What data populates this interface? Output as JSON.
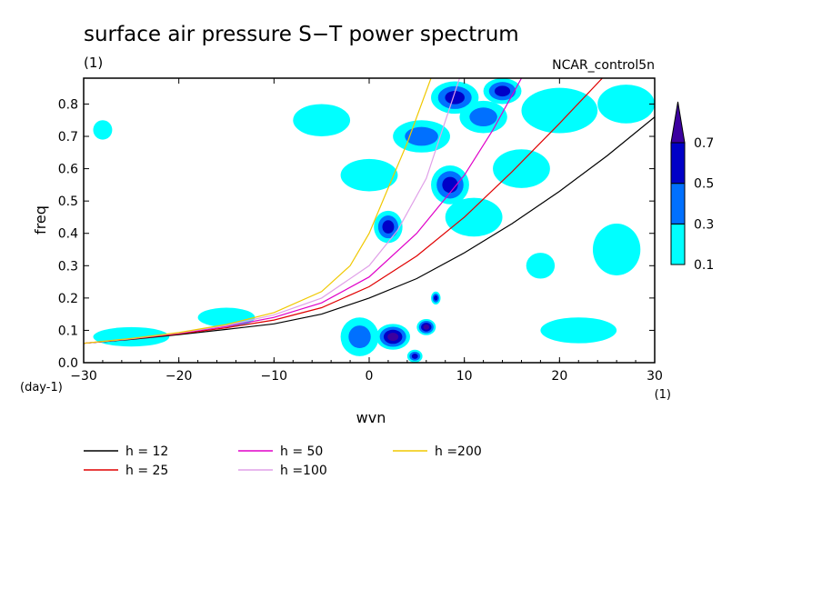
{
  "figure": {
    "title": "surface air pressure S−T power spectrum",
    "title_units": "(1)",
    "dataset": "NCAR_control5n",
    "x_units_below": "(1)",
    "y_units_below": "(day-1)"
  },
  "legend_entries": [
    {
      "label": "h = 12",
      "color": "#000000"
    },
    {
      "label": "h = 25",
      "color": "#e00000"
    },
    {
      "label": "h = 50",
      "color": "#e000c8"
    },
    {
      "label": "h =100",
      "color": "#e0a0e8"
    },
    {
      "label": "h =200",
      "color": "#f0c800"
    }
  ],
  "colorbar": {
    "labels": [
      "0.1",
      "0.3",
      "0.5",
      "0.7"
    ],
    "bands": [
      {
        "from": 0.1,
        "to": 0.3,
        "color": "#00ffff"
      },
      {
        "from": 0.3,
        "to": 0.5,
        "color": "#0070ff"
      },
      {
        "from": 0.5,
        "to": 0.7,
        "color": "#0000c8"
      },
      {
        "from": 0.7,
        "to": null,
        "color": "#3c00a0"
      }
    ]
  },
  "chart_data": {
    "type": "contour",
    "title": "surface air pressure S−T power spectrum",
    "xlabel": "wvn",
    "ylabel": "freq",
    "xlim": [
      -30,
      30
    ],
    "ylim": [
      0.0,
      0.88
    ],
    "x_ticks": [
      -30,
      -20,
      -10,
      0,
      10,
      20,
      30
    ],
    "x_tick_labels": [
      "−30",
      "−20",
      "−10",
      "0",
      "10",
      "20",
      "30"
    ],
    "y_ticks": [
      0.0,
      0.1,
      0.2,
      0.3,
      0.4,
      0.5,
      0.6,
      0.7,
      0.8
    ],
    "y_tick_labels": [
      "0.0",
      "0.1",
      "0.2",
      "0.3",
      "0.4",
      "0.5",
      "0.6",
      "0.7",
      "0.8"
    ],
    "contour_levels": [
      0.1,
      0.3,
      0.5,
      0.7
    ],
    "legend_position": "bottom",
    "dispersion_curves": [
      {
        "name": "h = 12",
        "color": "#000000",
        "x": [
          -30,
          -25,
          -20,
          -15,
          -10,
          -5,
          0,
          5,
          10,
          15,
          20,
          25,
          30
        ],
        "y": [
          0.06,
          0.072,
          0.087,
          0.103,
          0.12,
          0.15,
          0.2,
          0.26,
          0.34,
          0.43,
          0.53,
          0.64,
          0.76
        ]
      },
      {
        "name": "h = 25",
        "color": "#e00000",
        "x": [
          -30,
          -25,
          -20,
          -15,
          -10,
          -5,
          0,
          5,
          10,
          15,
          20,
          24.5
        ],
        "y": [
          0.06,
          0.073,
          0.089,
          0.108,
          0.132,
          0.17,
          0.235,
          0.33,
          0.45,
          0.59,
          0.74,
          0.88
        ]
      },
      {
        "name": "h = 50",
        "color": "#e000c8",
        "x": [
          -30,
          -25,
          -20,
          -15,
          -10,
          -5,
          0,
          5,
          10,
          13,
          16
        ],
        "y": [
          0.06,
          0.074,
          0.091,
          0.112,
          0.14,
          0.185,
          0.265,
          0.4,
          0.58,
          0.72,
          0.88
        ]
      },
      {
        "name": "h =100",
        "color": "#e0a0e8",
        "x": [
          -30,
          -25,
          -20,
          -15,
          -10,
          -5,
          0,
          3,
          6,
          9.5
        ],
        "y": [
          0.06,
          0.074,
          0.092,
          0.115,
          0.148,
          0.2,
          0.3,
          0.41,
          0.57,
          0.88
        ]
      },
      {
        "name": "h =200",
        "color": "#f0c800",
        "x": [
          -30,
          -25,
          -20,
          -15,
          -10,
          -5,
          -2,
          0,
          2,
          4,
          6.5
        ],
        "y": [
          0.06,
          0.075,
          0.093,
          0.118,
          0.155,
          0.22,
          0.3,
          0.4,
          0.54,
          0.68,
          0.88
        ]
      }
    ],
    "contour_regions": [
      {
        "x": 2.5,
        "y": 0.08,
        "rx": 1.8,
        "ry": 0.04,
        "level": 0.7
      },
      {
        "x": 6.0,
        "y": 0.11,
        "rx": 1.0,
        "ry": 0.025,
        "level": 0.7
      },
      {
        "x": 4.8,
        "y": 0.02,
        "rx": 0.8,
        "ry": 0.02,
        "level": 0.5
      },
      {
        "x": 7.0,
        "y": 0.2,
        "rx": 0.5,
        "ry": 0.02,
        "level": 0.5
      },
      {
        "x": -1.0,
        "y": 0.08,
        "rx": 2.0,
        "ry": 0.06,
        "level": 0.3
      },
      {
        "x": 2.0,
        "y": 0.42,
        "rx": 1.5,
        "ry": 0.05,
        "level": 0.5
      },
      {
        "x": 8.5,
        "y": 0.55,
        "rx": 2.0,
        "ry": 0.06,
        "level": 0.5
      },
      {
        "x": 9.0,
        "y": 0.82,
        "rx": 2.5,
        "ry": 0.05,
        "level": 0.5
      },
      {
        "x": 12.0,
        "y": 0.76,
        "rx": 2.5,
        "ry": 0.05,
        "level": 0.3
      },
      {
        "x": 14.0,
        "y": 0.84,
        "rx": 2.0,
        "ry": 0.04,
        "level": 0.5
      },
      {
        "x": 5.5,
        "y": 0.7,
        "rx": 3.0,
        "ry": 0.05,
        "level": 0.3
      },
      {
        "x": 20.0,
        "y": 0.78,
        "rx": 4.0,
        "ry": 0.07,
        "level": 0.1
      },
      {
        "x": 27.0,
        "y": 0.8,
        "rx": 3.0,
        "ry": 0.06,
        "level": 0.1
      },
      {
        "x": 16.0,
        "y": 0.6,
        "rx": 3.0,
        "ry": 0.06,
        "level": 0.1
      },
      {
        "x": -5.0,
        "y": 0.75,
        "rx": 3.0,
        "ry": 0.05,
        "level": 0.1
      },
      {
        "x": -28.0,
        "y": 0.72,
        "rx": 1.0,
        "ry": 0.03,
        "level": 0.1
      },
      {
        "x": -25.0,
        "y": 0.08,
        "rx": 4.0,
        "ry": 0.03,
        "level": 0.1
      },
      {
        "x": -15.0,
        "y": 0.14,
        "rx": 3.0,
        "ry": 0.03,
        "level": 0.1
      },
      {
        "x": 22.0,
        "y": 0.1,
        "rx": 4.0,
        "ry": 0.04,
        "level": 0.1
      },
      {
        "x": 26.0,
        "y": 0.35,
        "rx": 2.5,
        "ry": 0.08,
        "level": 0.1
      },
      {
        "x": 18.0,
        "y": 0.3,
        "rx": 1.5,
        "ry": 0.04,
        "level": 0.1
      },
      {
        "x": 0.0,
        "y": 0.58,
        "rx": 3.0,
        "ry": 0.05,
        "level": 0.1
      },
      {
        "x": 11.0,
        "y": 0.45,
        "rx": 3.0,
        "ry": 0.06,
        "level": 0.1
      }
    ]
  }
}
